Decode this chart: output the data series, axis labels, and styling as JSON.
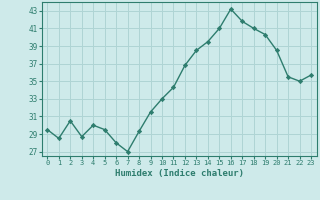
{
  "x": [
    0,
    1,
    2,
    3,
    4,
    5,
    6,
    7,
    8,
    9,
    10,
    11,
    12,
    13,
    14,
    15,
    16,
    17,
    18,
    19,
    20,
    21,
    22,
    23
  ],
  "y": [
    29.5,
    28.5,
    30.5,
    28.7,
    30.0,
    29.5,
    28.0,
    27.0,
    29.3,
    31.5,
    33.0,
    34.3,
    36.8,
    38.5,
    39.5,
    41.0,
    43.2,
    41.8,
    41.0,
    40.3,
    38.5,
    35.5,
    35.0,
    35.7
  ],
  "xlabel": "Humidex (Indice chaleur)",
  "xlim": [
    -0.5,
    23.5
  ],
  "ylim": [
    26.5,
    44
  ],
  "yticks": [
    27,
    29,
    31,
    33,
    35,
    37,
    39,
    41,
    43
  ],
  "xticks": [
    0,
    1,
    2,
    3,
    4,
    5,
    6,
    7,
    8,
    9,
    10,
    11,
    12,
    13,
    14,
    15,
    16,
    17,
    18,
    19,
    20,
    21,
    22,
    23
  ],
  "line_color": "#2e7d6e",
  "marker_color": "#2e7d6e",
  "bg_color": "#ceeaea",
  "grid_color": "#afd4d4",
  "text_color": "#2e7d6e",
  "xlabel_color": "#2e7d6e"
}
